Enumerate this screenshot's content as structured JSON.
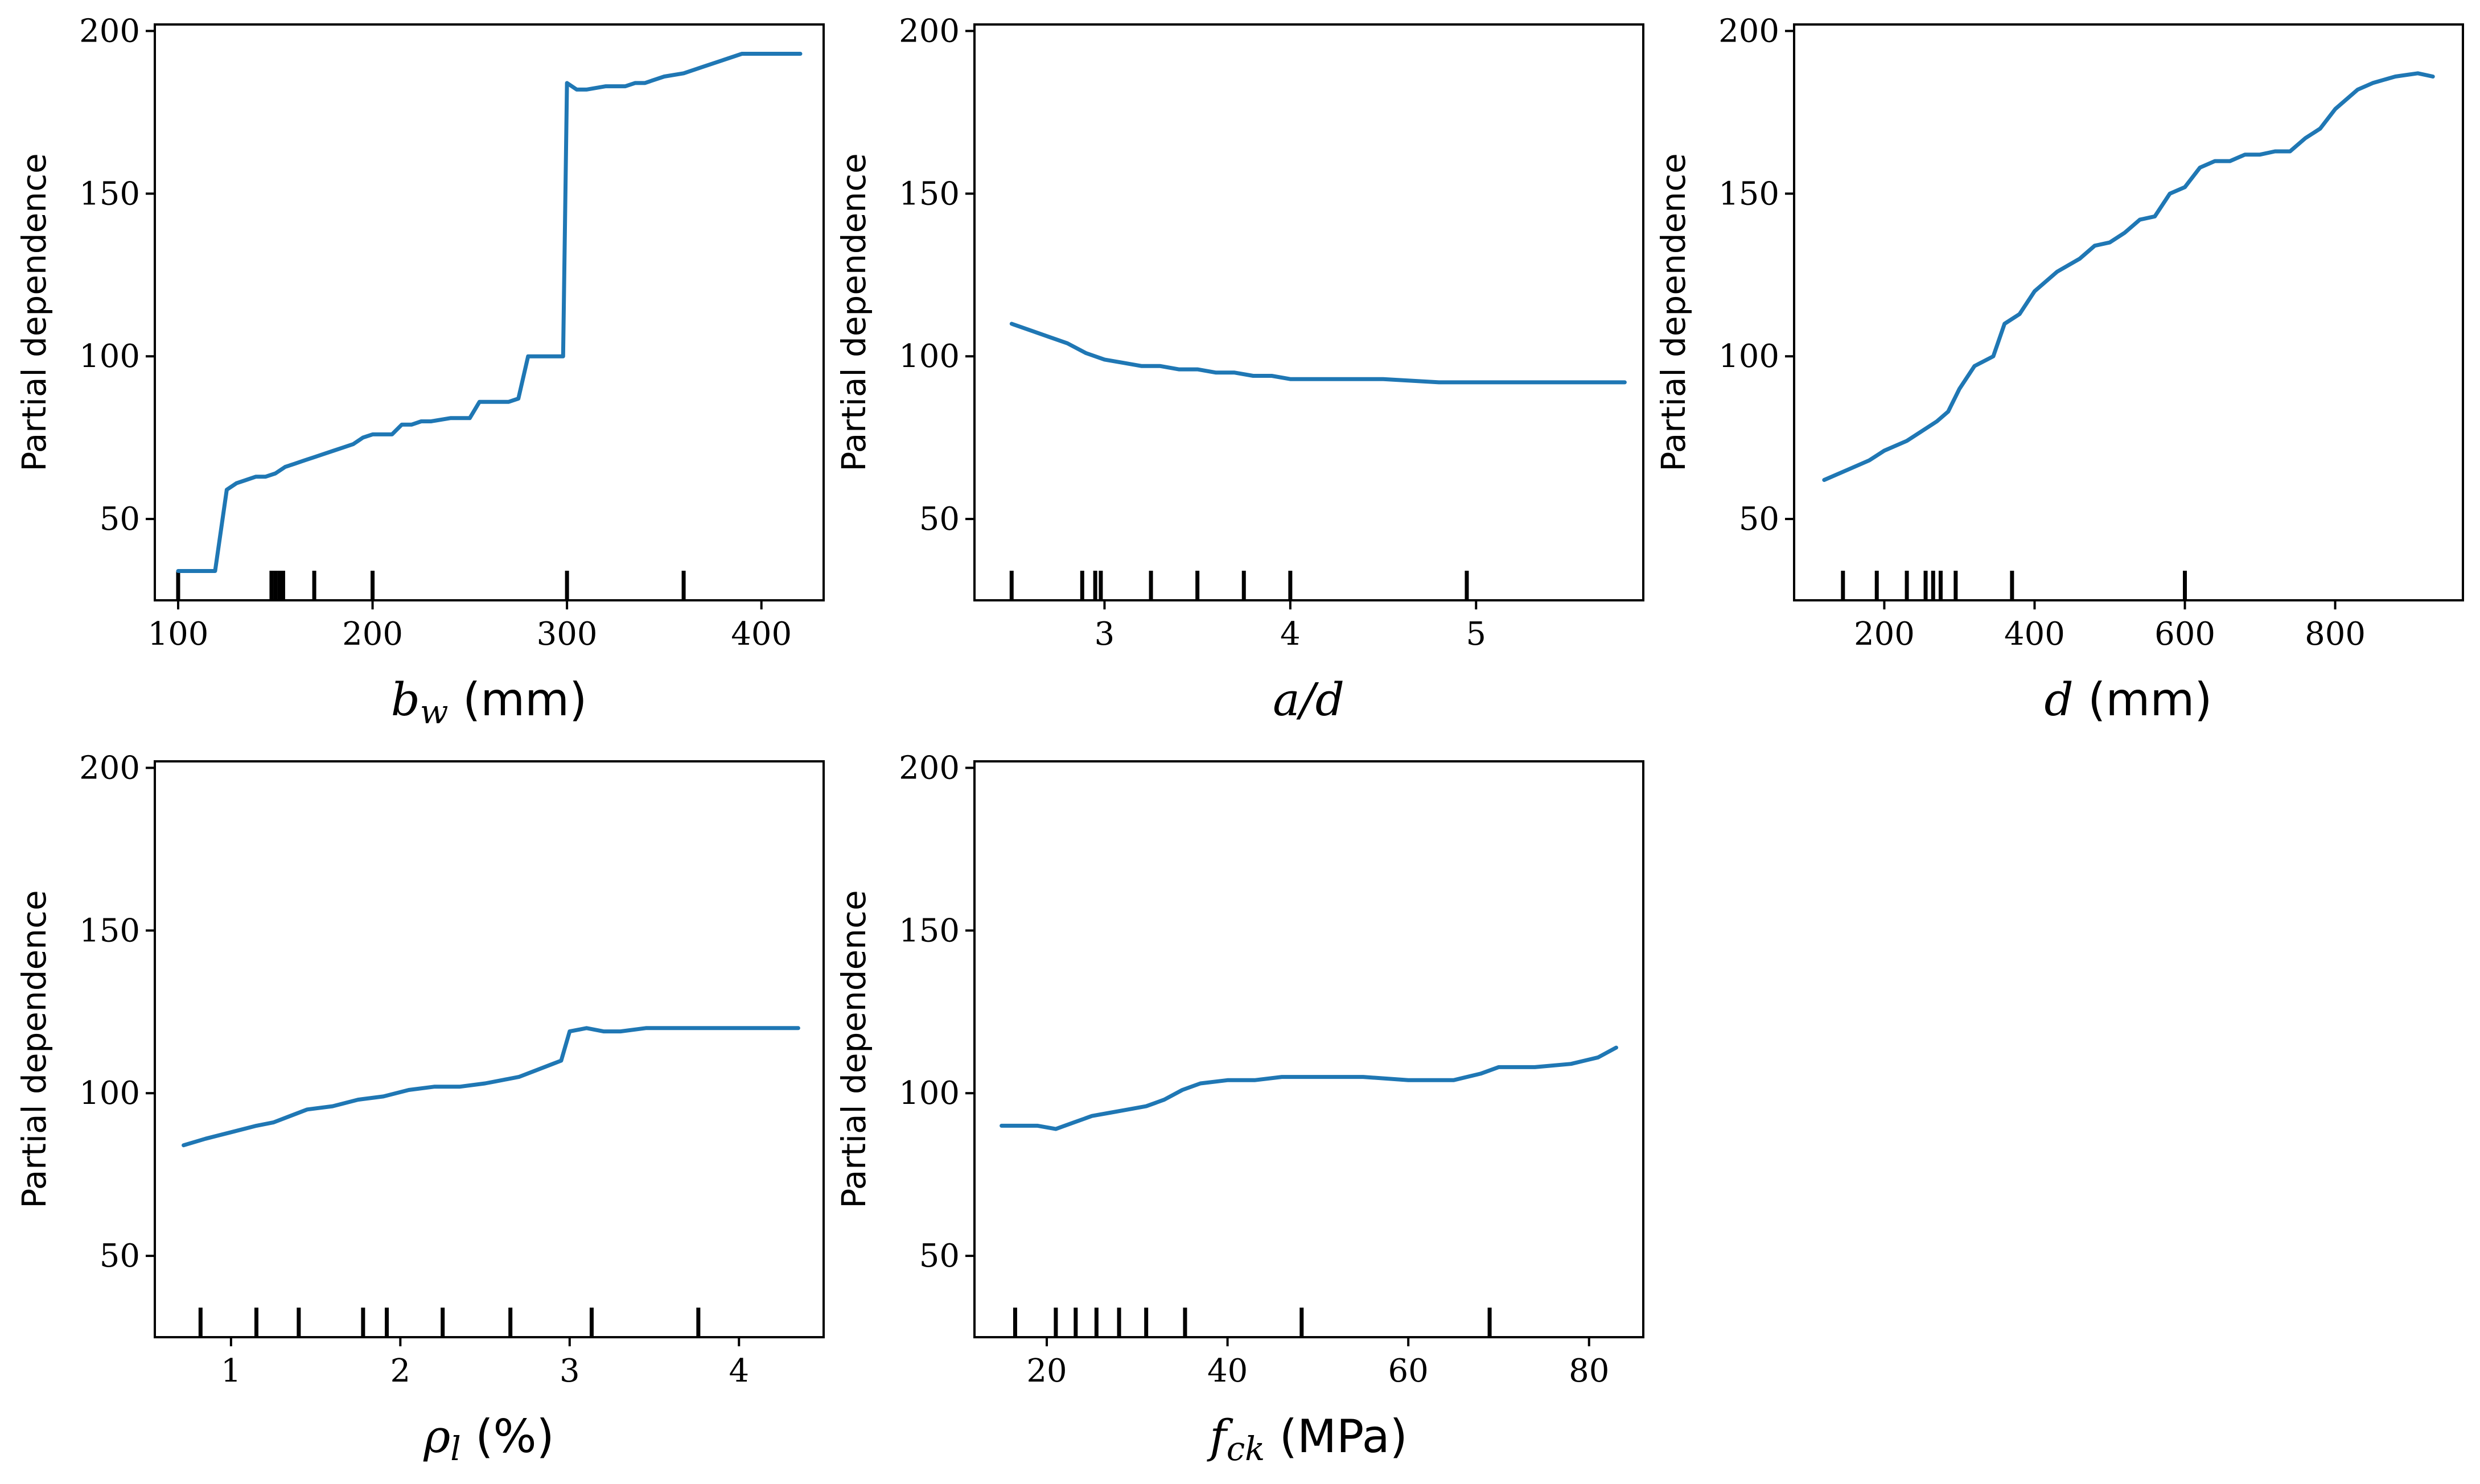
{
  "chart_data": [
    {
      "type": "line",
      "title": "",
      "xlabel": "b_w (mm)",
      "xlabel_var": "b",
      "xlabel_sub": "w",
      "xlabel_unit": " (mm)",
      "ylabel": "Partial dependence",
      "xlim": [
        88,
        432
      ],
      "ylim": [
        25,
        202
      ],
      "xticks": [
        100,
        200,
        300,
        400
      ],
      "yticks": [
        50,
        100,
        150,
        200
      ],
      "x": [
        100,
        110,
        119,
        125,
        130,
        135,
        140,
        145,
        150,
        155,
        160,
        165,
        170,
        175,
        180,
        185,
        190,
        195,
        200,
        205,
        210,
        215,
        220,
        225,
        230,
        240,
        250,
        255,
        260,
        270,
        275,
        280,
        285,
        292,
        298,
        300,
        305,
        310,
        320,
        330,
        335,
        340,
        350,
        360,
        370,
        380,
        390,
        395,
        400,
        410,
        420
      ],
      "values": [
        34,
        34,
        34,
        59,
        61,
        62,
        63,
        63,
        64,
        66,
        67,
        68,
        69,
        70,
        71,
        72,
        73,
        75,
        76,
        76,
        76,
        79,
        79,
        80,
        80,
        81,
        81,
        86,
        86,
        86,
        87,
        100,
        100,
        100,
        100,
        184,
        182,
        182,
        183,
        183,
        184,
        184,
        186,
        187,
        189,
        191,
        193,
        193,
        193,
        193,
        193
      ],
      "rug": [
        100,
        148,
        150,
        152,
        154,
        170,
        200,
        300,
        360
      ]
    },
    {
      "type": "line",
      "title": "",
      "xlabel": "a/d",
      "xlabel_var": "a/d",
      "xlabel_sub": "",
      "xlabel_unit": "",
      "ylabel": "Partial dependence",
      "xlim": [
        2.3,
        5.9
      ],
      "ylim": [
        25,
        202
      ],
      "xticks": [
        3,
        4,
        5
      ],
      "yticks": [
        50,
        100,
        150,
        200
      ],
      "x": [
        2.5,
        2.6,
        2.7,
        2.8,
        2.9,
        3.0,
        3.1,
        3.2,
        3.3,
        3.4,
        3.5,
        3.6,
        3.7,
        3.8,
        3.9,
        4.0,
        4.2,
        4.5,
        4.8,
        5.0,
        5.3,
        5.6,
        5.8
      ],
      "values": [
        110,
        108,
        106,
        104,
        101,
        99,
        98,
        97,
        97,
        96,
        96,
        95,
        95,
        94,
        94,
        93,
        93,
        93,
        92,
        92,
        92,
        92,
        92
      ],
      "rug": [
        2.5,
        2.88,
        2.95,
        2.98,
        3.25,
        3.5,
        3.75,
        4.0,
        4.95
      ]
    },
    {
      "type": "line",
      "title": "",
      "xlabel": "d (mm)",
      "xlabel_var": "d",
      "xlabel_sub": "",
      "xlabel_unit": " (mm)",
      "ylabel": "Partial dependence",
      "xlim": [
        80,
        970
      ],
      "ylim": [
        25,
        202
      ],
      "xticks": [
        200,
        400,
        600,
        800
      ],
      "yticks": [
        50,
        100,
        150,
        200
      ],
      "x": [
        120,
        150,
        180,
        200,
        230,
        250,
        270,
        285,
        300,
        320,
        345,
        360,
        380,
        400,
        430,
        460,
        480,
        500,
        520,
        540,
        560,
        580,
        600,
        620,
        640,
        660,
        680,
        700,
        720,
        740,
        760,
        780,
        800,
        830,
        850,
        880,
        910,
        930
      ],
      "values": [
        62,
        65,
        68,
        71,
        74,
        77,
        80,
        83,
        90,
        97,
        100,
        110,
        113,
        120,
        126,
        130,
        134,
        135,
        138,
        142,
        143,
        150,
        152,
        158,
        160,
        160,
        162,
        162,
        163,
        163,
        167,
        170,
        176,
        182,
        184,
        186,
        187,
        186
      ],
      "rug": [
        145,
        190,
        230,
        255,
        265,
        275,
        295,
        370,
        600
      ]
    },
    {
      "type": "line",
      "title": "",
      "xlabel": "ρ_l (%)",
      "xlabel_var": "ρ",
      "xlabel_sub": "l",
      "xlabel_unit": " (%)",
      "ylabel": "Partial dependence",
      "xlim": [
        0.55,
        4.5
      ],
      "ylim": [
        25,
        202
      ],
      "xticks": [
        1,
        2,
        3,
        4
      ],
      "yticks": [
        50,
        100,
        150,
        200
      ],
      "x": [
        0.72,
        0.85,
        1.0,
        1.15,
        1.25,
        1.35,
        1.45,
        1.6,
        1.75,
        1.9,
        2.05,
        2.2,
        2.35,
        2.5,
        2.6,
        2.7,
        2.8,
        2.9,
        2.95,
        3.0,
        3.1,
        3.2,
        3.3,
        3.45,
        3.6,
        3.8,
        4.0,
        4.2,
        4.35
      ],
      "values": [
        84,
        86,
        88,
        90,
        91,
        93,
        95,
        96,
        98,
        99,
        101,
        102,
        102,
        103,
        104,
        105,
        107,
        109,
        110,
        119,
        120,
        119,
        119,
        120,
        120,
        120,
        120,
        120,
        120
      ],
      "rug": [
        0.82,
        1.15,
        1.4,
        1.78,
        1.92,
        2.25,
        2.65,
        3.13,
        3.76
      ]
    },
    {
      "type": "line",
      "title": "",
      "xlabel": "f_ck (MPa)",
      "xlabel_var": "f",
      "xlabel_sub": "ck",
      "xlabel_unit": " (MPa)",
      "ylabel": "Partial dependence",
      "xlim": [
        12,
        86
      ],
      "ylim": [
        25,
        202
      ],
      "xticks": [
        20,
        40,
        60,
        80
      ],
      "yticks": [
        50,
        100,
        150,
        200
      ],
      "x": [
        15,
        17,
        19,
        21,
        23,
        25,
        27,
        29,
        31,
        33,
        35,
        37,
        40,
        43,
        46,
        50,
        55,
        60,
        65,
        68,
        70,
        74,
        78,
        81,
        83
      ],
      "values": [
        90,
        90,
        90,
        89,
        91,
        93,
        94,
        95,
        96,
        98,
        101,
        103,
        104,
        104,
        105,
        105,
        105,
        104,
        104,
        106,
        108,
        108,
        109,
        111,
        114
      ],
      "rug": [
        16.5,
        21,
        23.2,
        25.5,
        28,
        31,
        35.3,
        48.2,
        69
      ]
    }
  ]
}
